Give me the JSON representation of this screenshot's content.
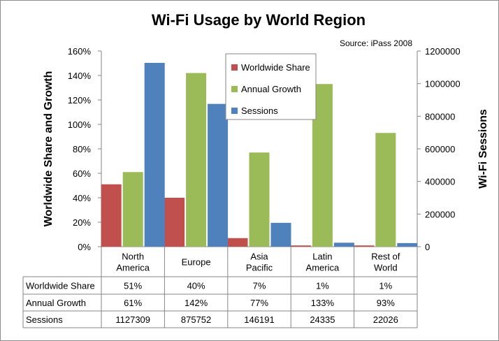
{
  "chart_data": {
    "type": "bar",
    "title": "Wi-Fi Usage by World Region",
    "source": "Source: iPass 2008",
    "ylabel_left": "Worldwide Share and Growth",
    "ylabel_right": "Wi-Fi Sessions",
    "categories": [
      [
        "North",
        "America"
      ],
      [
        "Europe"
      ],
      [
        "Asia",
        "Pacific"
      ],
      [
        "Latin",
        "America"
      ],
      [
        "Rest of",
        "World"
      ]
    ],
    "series": [
      {
        "name": "Worldwide Share",
        "axis": "left",
        "values": [
          0.51,
          0.4,
          0.07,
          0.01,
          0.01
        ],
        "labels": [
          "51%",
          "40%",
          "7%",
          "1%",
          "1%"
        ]
      },
      {
        "name": "Annual Growth",
        "axis": "left",
        "values": [
          0.61,
          1.42,
          0.77,
          1.33,
          0.93
        ],
        "labels": [
          "61%",
          "142%",
          "77%",
          "133%",
          "93%"
        ]
      },
      {
        "name": "Sessions",
        "axis": "right",
        "values": [
          1127309,
          875752,
          146191,
          24335,
          22026
        ],
        "labels": [
          "1127309",
          "875752",
          "146191",
          "24335",
          "22026"
        ]
      }
    ],
    "left_axis": {
      "min": 0,
      "max": 1.6,
      "ticks": [
        "0%",
        "20%",
        "40%",
        "60%",
        "80%",
        "100%",
        "120%",
        "140%",
        "160%"
      ]
    },
    "right_axis": {
      "min": 0,
      "max": 1200000,
      "ticks": [
        "0",
        "200000",
        "400000",
        "600000",
        "800000",
        "1000000",
        "1200000"
      ]
    },
    "colors": [
      "#c0504d",
      "#9bbb59",
      "#4f81bd"
    ],
    "legend_position": "top-center",
    "data_table": true,
    "grid": false
  }
}
